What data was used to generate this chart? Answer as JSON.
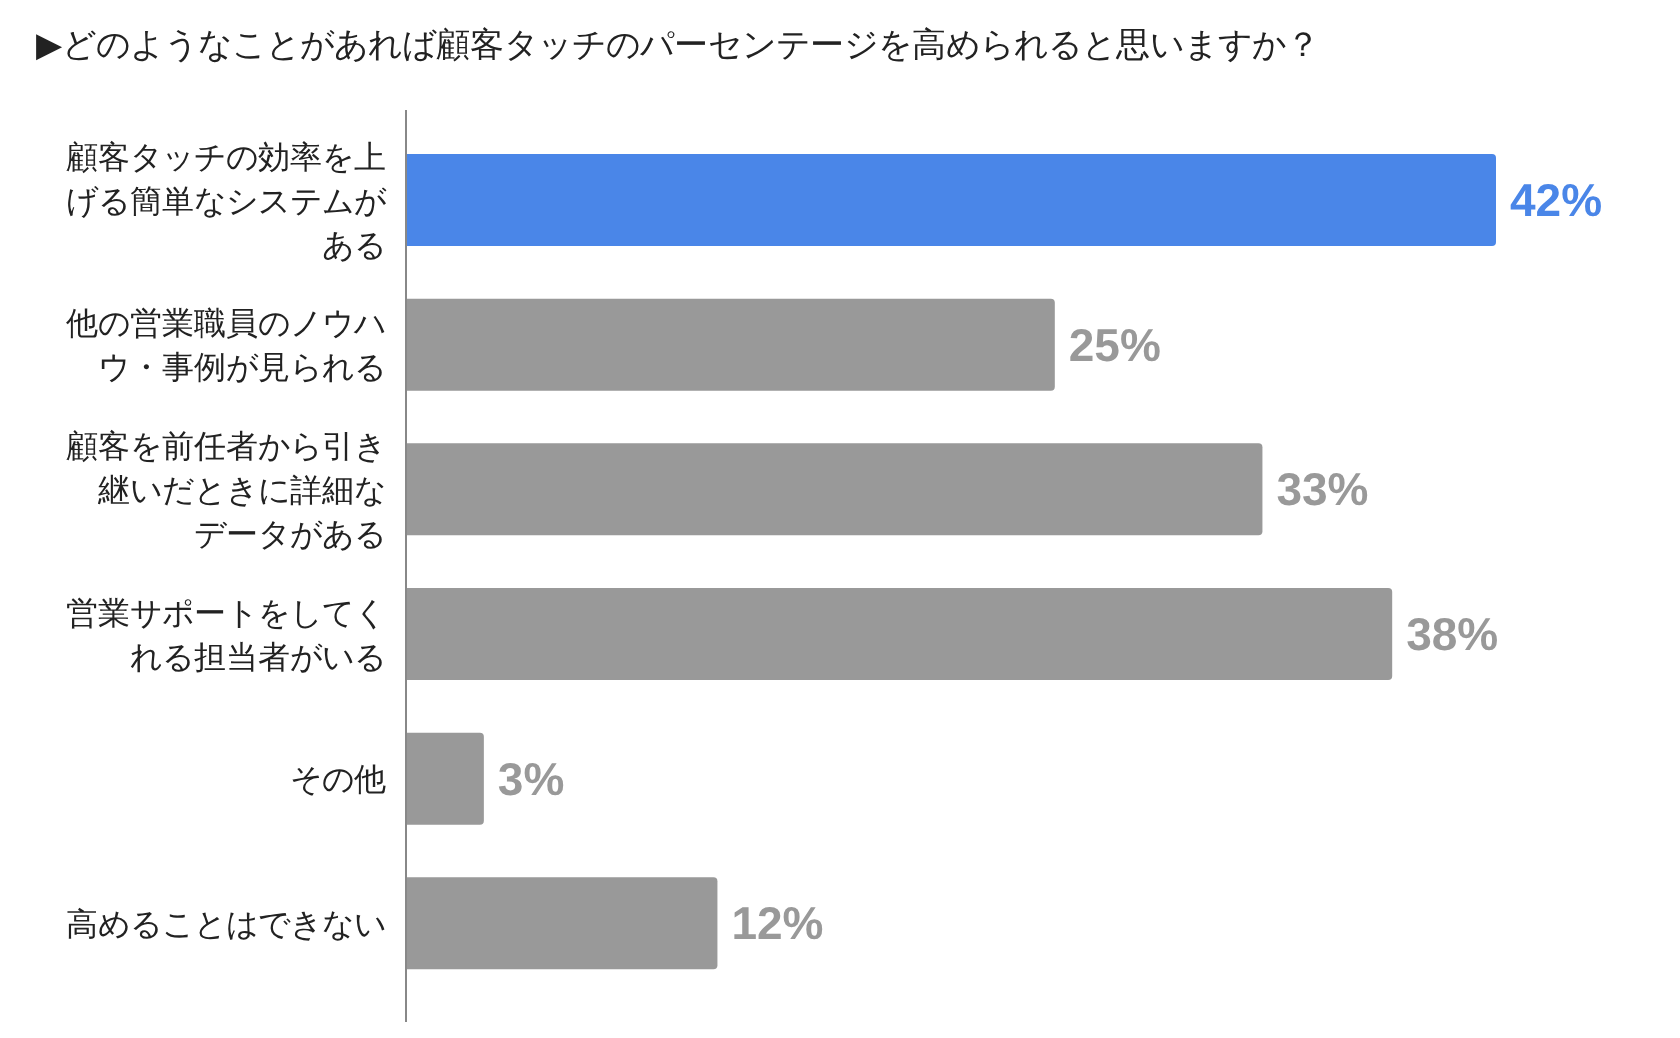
{
  "chart_data": {
    "type": "bar",
    "orientation": "horizontal",
    "title": "▶どのようなことがあれば顧客タッチのパーセンテージを高められると思いますか？",
    "categories": [
      "顧客タッチの効率を上げる簡単なシステムがある",
      "他の営業職員のノウハウ・事例が見られる",
      "顧客を前任者から引き継いだときに詳細なデータがある",
      "営業サポートをしてくれる担当者がいる",
      "その他",
      "高めることはできない"
    ],
    "values": [
      42,
      25,
      33,
      38,
      3,
      12
    ],
    "colors": [
      "#4a86e8",
      "#999999",
      "#999999",
      "#999999",
      "#999999",
      "#999999"
    ],
    "value_labels": [
      "42%",
      "25%",
      "33%",
      "38%",
      "3%",
      "12%"
    ]
  }
}
